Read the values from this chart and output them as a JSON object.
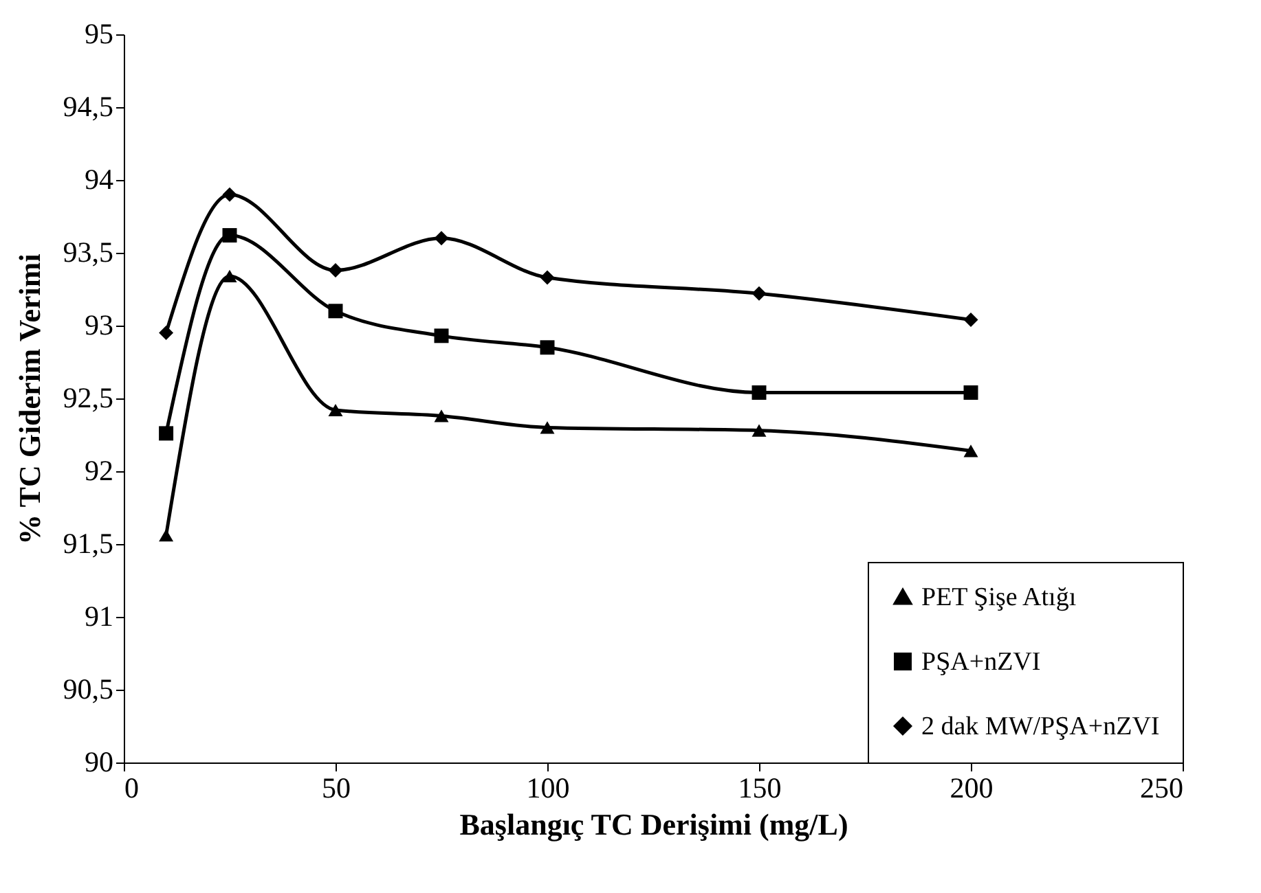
{
  "chart_data": {
    "type": "line",
    "xlabel": "Başlangıç TC Derişimi (mg/L)",
    "ylabel": "% TC Giderim Verimi",
    "x": [
      10,
      25,
      50,
      75,
      100,
      150,
      200
    ],
    "series": [
      {
        "name": "PET Şişe Atığı",
        "color": "#000000",
        "marker": "triangle",
        "values": [
          91.56,
          93.34,
          92.42,
          92.38,
          92.3,
          92.28,
          92.14
        ]
      },
      {
        "name": "PŞA+nZVI",
        "color": "#000000",
        "marker": "square",
        "values": [
          92.26,
          93.62,
          93.1,
          92.93,
          92.85,
          92.54,
          92.54
        ]
      },
      {
        "name": "2 dak MW/PŞA+nZVI",
        "color": "#000000",
        "marker": "diamond",
        "values": [
          92.95,
          93.9,
          93.38,
          93.6,
          93.33,
          93.22,
          93.04
        ]
      }
    ],
    "xlim": [
      0,
      250
    ],
    "xticks": [
      0,
      50,
      100,
      150,
      200,
      250
    ],
    "ylim": [
      90,
      95
    ],
    "yticks": [
      90,
      {
        "value": 90.5,
        "label": "90,5"
      },
      91,
      {
        "value": 91.5,
        "label": "91,5"
      },
      92,
      {
        "value": 92.5,
        "label": "92,5"
      },
      93,
      {
        "value": 93.5,
        "label": "93,5"
      },
      94,
      {
        "value": 94.5,
        "label": "94,5"
      },
      95
    ],
    "grid": false,
    "legend": "bottom right",
    "line_style": "solid"
  }
}
